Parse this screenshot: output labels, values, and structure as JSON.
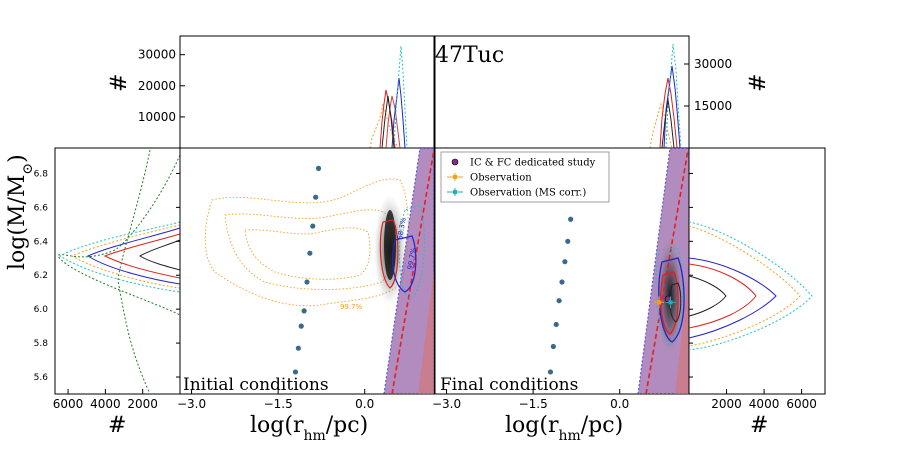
{
  "chart_data": {
    "type": "scatter",
    "title": "47Tuc",
    "xlabel": "log(r_hm/pc)",
    "ylabel": "log(M/M_⊙)",
    "xlim": [
      -3.2,
      1.2
    ],
    "ylim": [
      5.5,
      6.95
    ],
    "x_ticks": [
      "−3.0",
      "−1.5",
      "0.0"
    ],
    "x_tick_values": [
      -3.0,
      -1.5,
      0.0
    ],
    "y_ticks": [
      "5.6",
      "5.8",
      "6.0",
      "6.2",
      "6.4",
      "6.6",
      "6.8"
    ],
    "y_tick_values": [
      5.6,
      5.8,
      6.0,
      6.2,
      6.4,
      6.6,
      6.8
    ],
    "panels": [
      {
        "label": "Initial conditions",
        "grid_points": [
          [
            -0.8,
            6.83
          ],
          [
            -0.85,
            6.66
          ],
          [
            -0.9,
            6.49
          ],
          [
            -0.95,
            6.33
          ],
          [
            -1.0,
            6.16
          ],
          [
            -1.05,
            5.99
          ],
          [
            -1.1,
            5.9
          ],
          [
            -1.15,
            5.77
          ],
          [
            -1.2,
            5.63
          ]
        ],
        "contour_labels": [
          "99.7%",
          "99.7%",
          "68.3%"
        ]
      },
      {
        "label": "Final conditions",
        "grid_points": [
          [
            -0.8,
            6.82
          ],
          [
            -0.85,
            6.53
          ],
          [
            -0.9,
            6.4
          ],
          [
            -0.95,
            6.28
          ],
          [
            -1.0,
            6.16
          ],
          [
            -1.05,
            6.05
          ],
          [
            -1.1,
            5.91
          ],
          [
            -1.15,
            5.78
          ],
          [
            -1.2,
            5.63
          ]
        ],
        "observations": [
          {
            "name": "Observation",
            "x": 0.75,
            "y": 6.04,
            "color": "#f0a020"
          },
          {
            "name": "Observation (MS corr.)",
            "x": 0.95,
            "y": 6.04,
            "color": "#20b0b0"
          }
        ]
      }
    ],
    "top_histograms": {
      "ylabel": "#",
      "left_ticks": [
        "10000",
        "20000",
        "30000"
      ],
      "left_tick_values": [
        10000,
        20000,
        30000
      ],
      "right_ticks": [
        "15000",
        "30000"
      ],
      "right_tick_values": [
        15000,
        30000
      ]
    },
    "side_histograms": {
      "xlabel": "#",
      "left_ticks": [
        "6000",
        "4000",
        "2000"
      ],
      "left_tick_values": [
        6000,
        4000,
        2000
      ],
      "right_ticks": [
        "2000",
        "4000",
        "6000"
      ],
      "right_tick_values": [
        2000,
        4000,
        6000
      ]
    },
    "legend": {
      "position": "top-left of right panel",
      "entries": [
        {
          "label": "IC & FC dedicated study",
          "color": "#8b2a8b"
        },
        {
          "label": "Observation",
          "color": "#f0a020"
        },
        {
          "label": "Observation (MS corr.)",
          "color": "#20b0b0"
        }
      ]
    },
    "colors": {
      "blue": "#2222cc",
      "red": "#e02020",
      "orange": "#f0a020",
      "cyan": "#20c0c0",
      "green": "#208020",
      "band": "#9a66aa",
      "dots": "#3a6a8a"
    }
  }
}
